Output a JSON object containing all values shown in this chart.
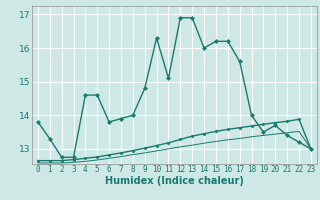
{
  "xlabel": "Humidex (Indice chaleur)",
  "background_color": "#cde8e5",
  "grid_color": "#ffffff",
  "line_color": "#1a7a6e",
  "xlim": [
    -0.5,
    23.5
  ],
  "ylim": [
    12.55,
    17.25
  ],
  "yticks": [
    13,
    14,
    15,
    16,
    17
  ],
  "xticks": [
    0,
    1,
    2,
    3,
    4,
    5,
    6,
    7,
    8,
    9,
    10,
    11,
    12,
    13,
    14,
    15,
    16,
    17,
    18,
    19,
    20,
    21,
    22,
    23
  ],
  "line1_x": [
    0,
    1,
    2,
    3,
    4,
    5,
    6,
    7,
    8,
    9,
    10,
    11,
    12,
    13,
    14,
    15,
    16,
    17,
    18,
    19,
    20,
    21,
    22,
    23
  ],
  "line1_y": [
    13.8,
    13.3,
    12.75,
    12.75,
    14.6,
    14.6,
    13.8,
    13.9,
    14.0,
    14.8,
    16.3,
    15.1,
    16.9,
    16.9,
    16.0,
    16.2,
    16.2,
    15.6,
    14.0,
    13.5,
    13.7,
    13.4,
    13.2,
    13.0
  ],
  "line2_x": [
    0,
    1,
    2,
    3,
    4,
    5,
    6,
    7,
    8,
    9,
    10,
    11,
    12,
    13,
    14,
    15,
    16,
    17,
    18,
    19,
    20,
    21,
    22,
    23
  ],
  "line2_y": [
    12.65,
    12.65,
    12.65,
    12.68,
    12.72,
    12.76,
    12.82,
    12.88,
    12.95,
    13.02,
    13.1,
    13.18,
    13.28,
    13.38,
    13.45,
    13.52,
    13.58,
    13.63,
    13.68,
    13.73,
    13.78,
    13.82,
    13.88,
    13.0
  ],
  "line3_x": [
    0,
    1,
    2,
    3,
    4,
    5,
    6,
    7,
    8,
    9,
    10,
    11,
    12,
    13,
    14,
    15,
    16,
    17,
    18,
    19,
    20,
    21,
    22,
    23
  ],
  "line3_y": [
    12.58,
    12.58,
    12.58,
    12.6,
    12.63,
    12.67,
    12.72,
    12.77,
    12.83,
    12.88,
    12.94,
    13.0,
    13.06,
    13.11,
    13.17,
    13.22,
    13.27,
    13.31,
    13.36,
    13.4,
    13.44,
    13.48,
    13.52,
    13.0
  ]
}
